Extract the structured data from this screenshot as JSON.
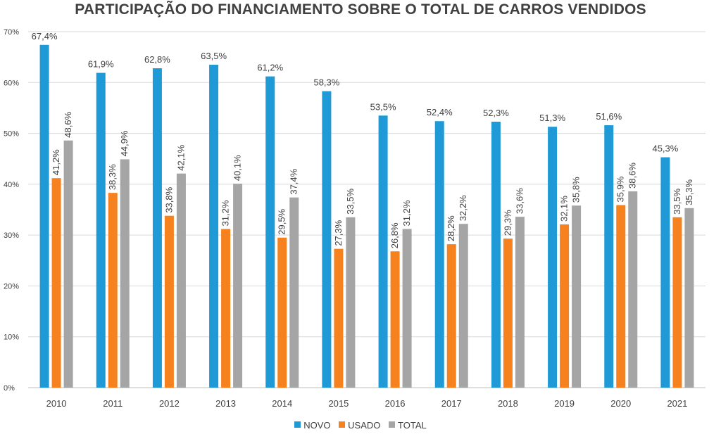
{
  "title": "PARTICIPAÇÃO DO FINANCIAMENTO SOBRE O TOTAL DE CARROS VENDIDOS",
  "colors": {
    "novo": "#1f9ad6",
    "usado": "#f5811f",
    "total": "#a5a5a5",
    "grid": "#d9d9d9",
    "text": "#404040"
  },
  "chart_data": {
    "type": "bar",
    "categories": [
      "2010",
      "2011",
      "2012",
      "2013",
      "2014",
      "2015",
      "2016",
      "2017",
      "2018",
      "2019",
      "2020",
      "2021"
    ],
    "series": [
      {
        "name": "NOVO",
        "values": [
          67.4,
          61.9,
          62.8,
          63.5,
          61.2,
          58.3,
          53.5,
          52.4,
          52.3,
          51.3,
          51.6,
          45.3
        ],
        "labels": [
          "67,4%",
          "61,9%",
          "62,8%",
          "63,5%",
          "61,2%",
          "58,3%",
          "53,5%",
          "52,4%",
          "52,3%",
          "51,3%",
          "51,6%",
          "45,3%"
        ]
      },
      {
        "name": "USADO",
        "values": [
          41.2,
          38.3,
          33.8,
          31.2,
          29.5,
          27.3,
          26.8,
          28.2,
          29.3,
          32.1,
          35.9,
          33.5
        ],
        "labels": [
          "41,2%",
          "38,3%",
          "33,8%",
          "31,2%",
          "29,5%",
          "27,3%",
          "26,8%",
          "28,2%",
          "29,3%",
          "32,1%",
          "35,9%",
          "33,5%"
        ]
      },
      {
        "name": "TOTAL",
        "values": [
          48.6,
          44.9,
          42.1,
          40.1,
          37.4,
          33.5,
          31.2,
          32.2,
          33.6,
          35.8,
          38.6,
          35.3
        ],
        "labels": [
          "48,6%",
          "44,9%",
          "42,1%",
          "40,1%",
          "37,4%",
          "33,5%",
          "31,2%",
          "32,2%",
          "33,6%",
          "35,8%",
          "38,6%",
          "35,3%"
        ]
      }
    ],
    "y_ticks": [
      "0%",
      "10%",
      "20%",
      "30%",
      "40%",
      "50%",
      "60%",
      "70%"
    ],
    "ylim": [
      0,
      70
    ],
    "grid": true,
    "legend_position": "bottom"
  }
}
